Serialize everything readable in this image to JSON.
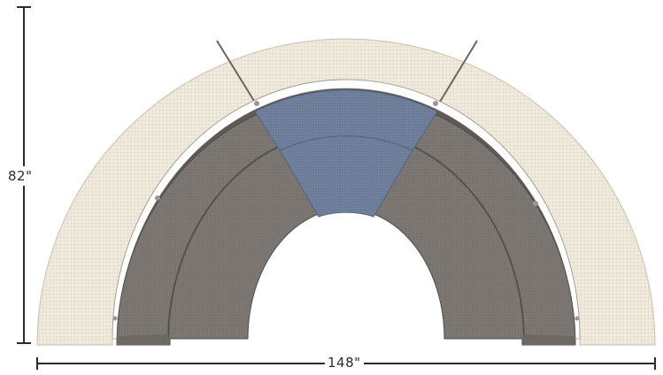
{
  "dimensions": {
    "height": "82\"",
    "width": "148\""
  },
  "colors": {
    "outer_fabric": "#ece6d9",
    "seat_fabric": "#7b7671",
    "back_fabric": "#6b6763",
    "accent_fabric": "#6f7f9c",
    "dimension_line": "#2b2b2b"
  },
  "pieces": [
    {
      "name": "outer-panel-left"
    },
    {
      "name": "outer-panel-center"
    },
    {
      "name": "outer-panel-right"
    },
    {
      "name": "sectional-left-gray"
    },
    {
      "name": "sectional-center-blue"
    },
    {
      "name": "sectional-right-gray"
    }
  ]
}
